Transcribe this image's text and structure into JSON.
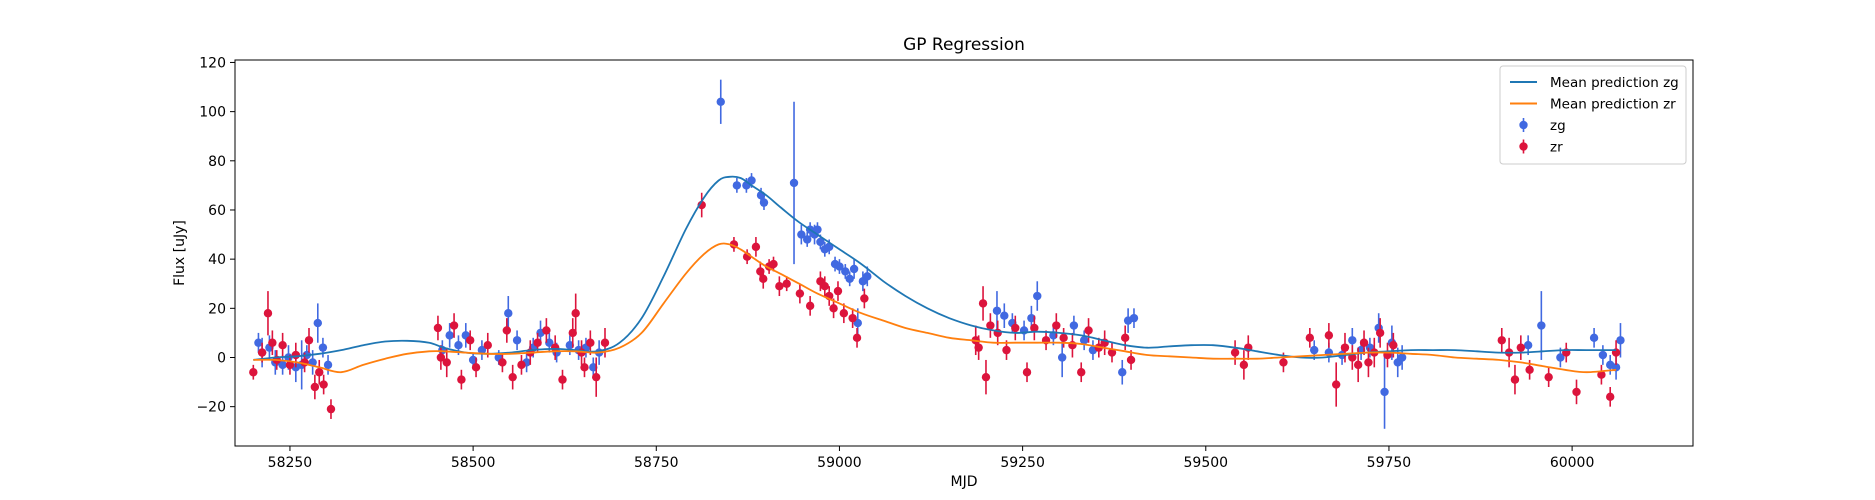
{
  "chart_data": {
    "type": "scatter",
    "title": "GP Regression",
    "xlabel": "MJD",
    "ylabel": "Flux [uJy]",
    "xlim": [
      58175,
      60165
    ],
    "ylim": [
      -36,
      121
    ],
    "xticks": [
      58250,
      58500,
      58750,
      59000,
      59250,
      59500,
      59750,
      60000
    ],
    "yticks": [
      -20,
      0,
      20,
      40,
      60,
      80,
      100,
      120
    ],
    "grid": false,
    "legend_position": "top-right",
    "series": [
      {
        "name": "Mean prediction zg",
        "kind": "line",
        "color": "#1f77b4",
        "x": [
          58200,
          58230,
          58260,
          58290,
          58320,
          58350,
          58380,
          58410,
          58440,
          58460,
          58490,
          58520,
          58550,
          58580,
          58610,
          58640,
          58670,
          58700,
          58730,
          58760,
          58790,
          58815,
          58835,
          58850,
          58865,
          58880,
          58900,
          58920,
          58945,
          58970,
          59000,
          59030,
          59060,
          59090,
          59120,
          59150,
          59180,
          59210,
          59240,
          59270,
          59300,
          59330,
          59360,
          59390,
          59420,
          59450,
          59480,
          59510,
          59540,
          59570,
          59600,
          59630,
          59660,
          59690,
          59720,
          59750,
          59780,
          59810,
          59840,
          59870,
          59900,
          59930,
          59960,
          59990,
          60020,
          60060
        ],
        "y": [
          -1,
          0,
          0.5,
          1.5,
          3,
          5,
          6.5,
          6.8,
          6,
          4,
          2,
          1.5,
          2,
          3,
          3.5,
          3,
          2.5,
          6,
          16,
          33,
          52,
          65,
          72,
          73.5,
          73,
          70,
          66,
          61,
          55,
          50,
          44,
          38,
          31,
          25,
          20,
          16,
          13,
          11,
          10,
          10.5,
          10,
          9,
          7,
          5,
          4,
          4.5,
          5,
          5,
          4,
          2.5,
          1,
          0,
          0,
          1,
          2,
          2.5,
          3,
          3,
          3,
          2.5,
          2,
          2,
          2.5,
          3,
          3,
          3
        ]
      },
      {
        "name": "Mean prediction zr",
        "kind": "line",
        "color": "#ff7f0e",
        "x": [
          58200,
          58230,
          58260,
          58290,
          58320,
          58350,
          58380,
          58410,
          58440,
          58460,
          58490,
          58520,
          58550,
          58580,
          58610,
          58640,
          58670,
          58700,
          58730,
          58760,
          58790,
          58815,
          58835,
          58850,
          58865,
          58880,
          58900,
          58920,
          58945,
          58970,
          59000,
          59030,
          59060,
          59090,
          59120,
          59150,
          59180,
          59210,
          59240,
          59270,
          59300,
          59330,
          59360,
          59390,
          59420,
          59450,
          59480,
          59510,
          59540,
          59570,
          59600,
          59630,
          59660,
          59690,
          59720,
          59750,
          59780,
          59810,
          59840,
          59870,
          59900,
          59930,
          59960,
          59990,
          60020,
          60060
        ],
        "y": [
          -1,
          -1,
          -2,
          -4,
          -6,
          -3,
          -0.5,
          1.5,
          2.5,
          2.5,
          2,
          1.5,
          1.5,
          2,
          2.5,
          2.5,
          2,
          4,
          10,
          22,
          34,
          42,
          46,
          46,
          44,
          41,
          37,
          34,
          30,
          26,
          22,
          18,
          15,
          12,
          10,
          8,
          7,
          6,
          6,
          6,
          6,
          5.5,
          4,
          2.5,
          1,
          0.5,
          0,
          -0.5,
          -0.5,
          -0.5,
          0,
          0.5,
          1,
          1.5,
          2,
          2,
          1.5,
          1,
          0,
          -0.5,
          -1,
          -2,
          -3.5,
          -5,
          -6,
          -5
        ]
      },
      {
        "name": "zg",
        "kind": "errorbar",
        "color": "#4169e1",
        "x": [
          58207,
          58212,
          58222,
          58230,
          58240,
          58248,
          58258,
          58266,
          58273,
          58281,
          58288,
          58295,
          58302,
          58458,
          58468,
          58480,
          58490,
          58500,
          58512,
          58535,
          58548,
          58560,
          58573,
          58582,
          58592,
          58604,
          58614,
          58632,
          58644,
          58654,
          58664,
          58672,
          58838,
          58860,
          58873,
          58880,
          58893,
          58897,
          58938,
          58948,
          58956,
          58960,
          58966,
          58970,
          58974,
          58980,
          58986,
          58994,
          59000,
          59008,
          59014,
          59020,
          59025,
          59032,
          59038,
          59215,
          59225,
          59236,
          59252,
          59262,
          59270,
          59292,
          59304,
          59320,
          59334,
          59346,
          59386,
          59394,
          59402,
          59648,
          59668,
          59686,
          59700,
          59712,
          59724,
          59736,
          59744,
          59754,
          59762,
          59768,
          59940,
          59958,
          59984,
          60030,
          60042,
          60052,
          60060,
          60066
        ],
        "y": [
          6,
          2,
          4,
          -2,
          -3,
          0,
          -4,
          -3,
          1,
          -2,
          14,
          4,
          -3,
          3,
          9,
          5,
          9,
          -1,
          3,
          0,
          18,
          7,
          -2,
          4,
          10,
          6,
          2,
          5,
          3,
          4,
          -4,
          2,
          104,
          70,
          70,
          72,
          66,
          63,
          71,
          50,
          48,
          52,
          50,
          52,
          47,
          44,
          45,
          38,
          37,
          35,
          32,
          36,
          14,
          31,
          33,
          19,
          17,
          14,
          11,
          16,
          25,
          9,
          0,
          13,
          7,
          3,
          -6,
          15,
          16,
          3,
          2,
          1,
          7,
          3,
          4,
          12,
          -14,
          6,
          -2,
          0,
          5,
          13,
          0,
          8,
          1,
          -3,
          -4,
          7
        ],
        "err": [
          4,
          6,
          5,
          5,
          4,
          5,
          6,
          10,
          4,
          5,
          8,
          4,
          4,
          4,
          5,
          4,
          5,
          3,
          4,
          3,
          7,
          4,
          4,
          4,
          5,
          4,
          4,
          4,
          4,
          4,
          4,
          5,
          9,
          3,
          3,
          3,
          3,
          3,
          33,
          4,
          3,
          3,
          4,
          3,
          3,
          3,
          3,
          3,
          3,
          3,
          3,
          4,
          6,
          4,
          4,
          8,
          5,
          4,
          4,
          5,
          6,
          4,
          8,
          4,
          4,
          4,
          5,
          5,
          4,
          4,
          4,
          4,
          5,
          4,
          4,
          6,
          15,
          7,
          6,
          5,
          4,
          14,
          4,
          4,
          4,
          4,
          5,
          7
        ]
      },
      {
        "name": "zr",
        "kind": "errorbar",
        "color": "#dc143c",
        "x": [
          58200,
          58212,
          58220,
          58226,
          58232,
          58240,
          58250,
          58258,
          58270,
          58276,
          58284,
          58290,
          58296,
          58306,
          58452,
          58456,
          58464,
          58474,
          58484,
          58496,
          58504,
          58520,
          58540,
          58546,
          58554,
          58566,
          58578,
          58588,
          58600,
          58612,
          58622,
          58636,
          58640,
          58648,
          58652,
          58660,
          58668,
          58680,
          58812,
          58856,
          58874,
          58886,
          58892,
          58896,
          58904,
          58910,
          58918,
          58928,
          58946,
          58960,
          58974,
          58980,
          58986,
          58992,
          58998,
          59006,
          59018,
          59024,
          59034,
          59186,
          59190,
          59196,
          59200,
          59206,
          59216,
          59228,
          59240,
          59256,
          59266,
          59282,
          59296,
          59306,
          59318,
          59330,
          59340,
          59354,
          59362,
          59372,
          59390,
          59398,
          59540,
          59552,
          59558,
          59606,
          59642,
          59668,
          59678,
          59690,
          59700,
          59708,
          59716,
          59722,
          59730,
          59738,
          59748,
          59756,
          59904,
          59914,
          59922,
          59930,
          59942,
          59968,
          59992,
          60006,
          60040,
          60052,
          60060
        ],
        "y": [
          -6,
          2,
          18,
          6,
          -1,
          5,
          -3,
          1,
          -2,
          7,
          -12,
          -6,
          -11,
          -21,
          12,
          0,
          -2,
          13,
          -9,
          7,
          -4,
          5,
          -2,
          11,
          -8,
          -3,
          2,
          6,
          11,
          4,
          -9,
          10,
          18,
          2,
          -4,
          6,
          -8,
          6,
          62,
          46,
          41,
          45,
          35,
          32,
          37,
          38,
          29,
          30,
          26,
          21,
          31,
          29,
          25,
          20,
          27,
          18,
          16,
          8,
          24,
          7,
          4,
          22,
          -8,
          13,
          10,
          3,
          12,
          -6,
          12,
          7,
          13,
          8,
          5,
          -6,
          11,
          4,
          6,
          2,
          8,
          -1,
          2,
          -3,
          4,
          -2,
          8,
          9,
          -11,
          4,
          0,
          -3,
          6,
          -2,
          2,
          10,
          1,
          5,
          7,
          2,
          -9,
          4,
          -5,
          -8,
          2,
          -14,
          -7,
          -16,
          2
        ],
        "err": [
          3,
          4,
          9,
          5,
          4,
          5,
          4,
          5,
          4,
          5,
          5,
          5,
          4,
          4,
          5,
          5,
          6,
          5,
          4,
          4,
          4,
          5,
          4,
          5,
          5,
          4,
          5,
          4,
          5,
          5,
          4,
          6,
          8,
          5,
          4,
          5,
          8,
          6,
          5,
          3,
          3,
          4,
          4,
          4,
          3,
          3,
          4,
          3,
          4,
          4,
          4,
          4,
          4,
          4,
          4,
          4,
          4,
          4,
          4,
          6,
          5,
          7,
          7,
          5,
          5,
          4,
          5,
          4,
          5,
          4,
          5,
          4,
          5,
          4,
          5,
          4,
          5,
          4,
          5,
          4,
          5,
          6,
          5,
          4,
          4,
          5,
          9,
          6,
          5,
          7,
          5,
          6,
          6,
          6,
          5,
          5,
          5,
          6,
          6,
          5,
          4,
          4,
          4,
          5,
          4,
          4,
          5
        ]
      }
    ]
  }
}
